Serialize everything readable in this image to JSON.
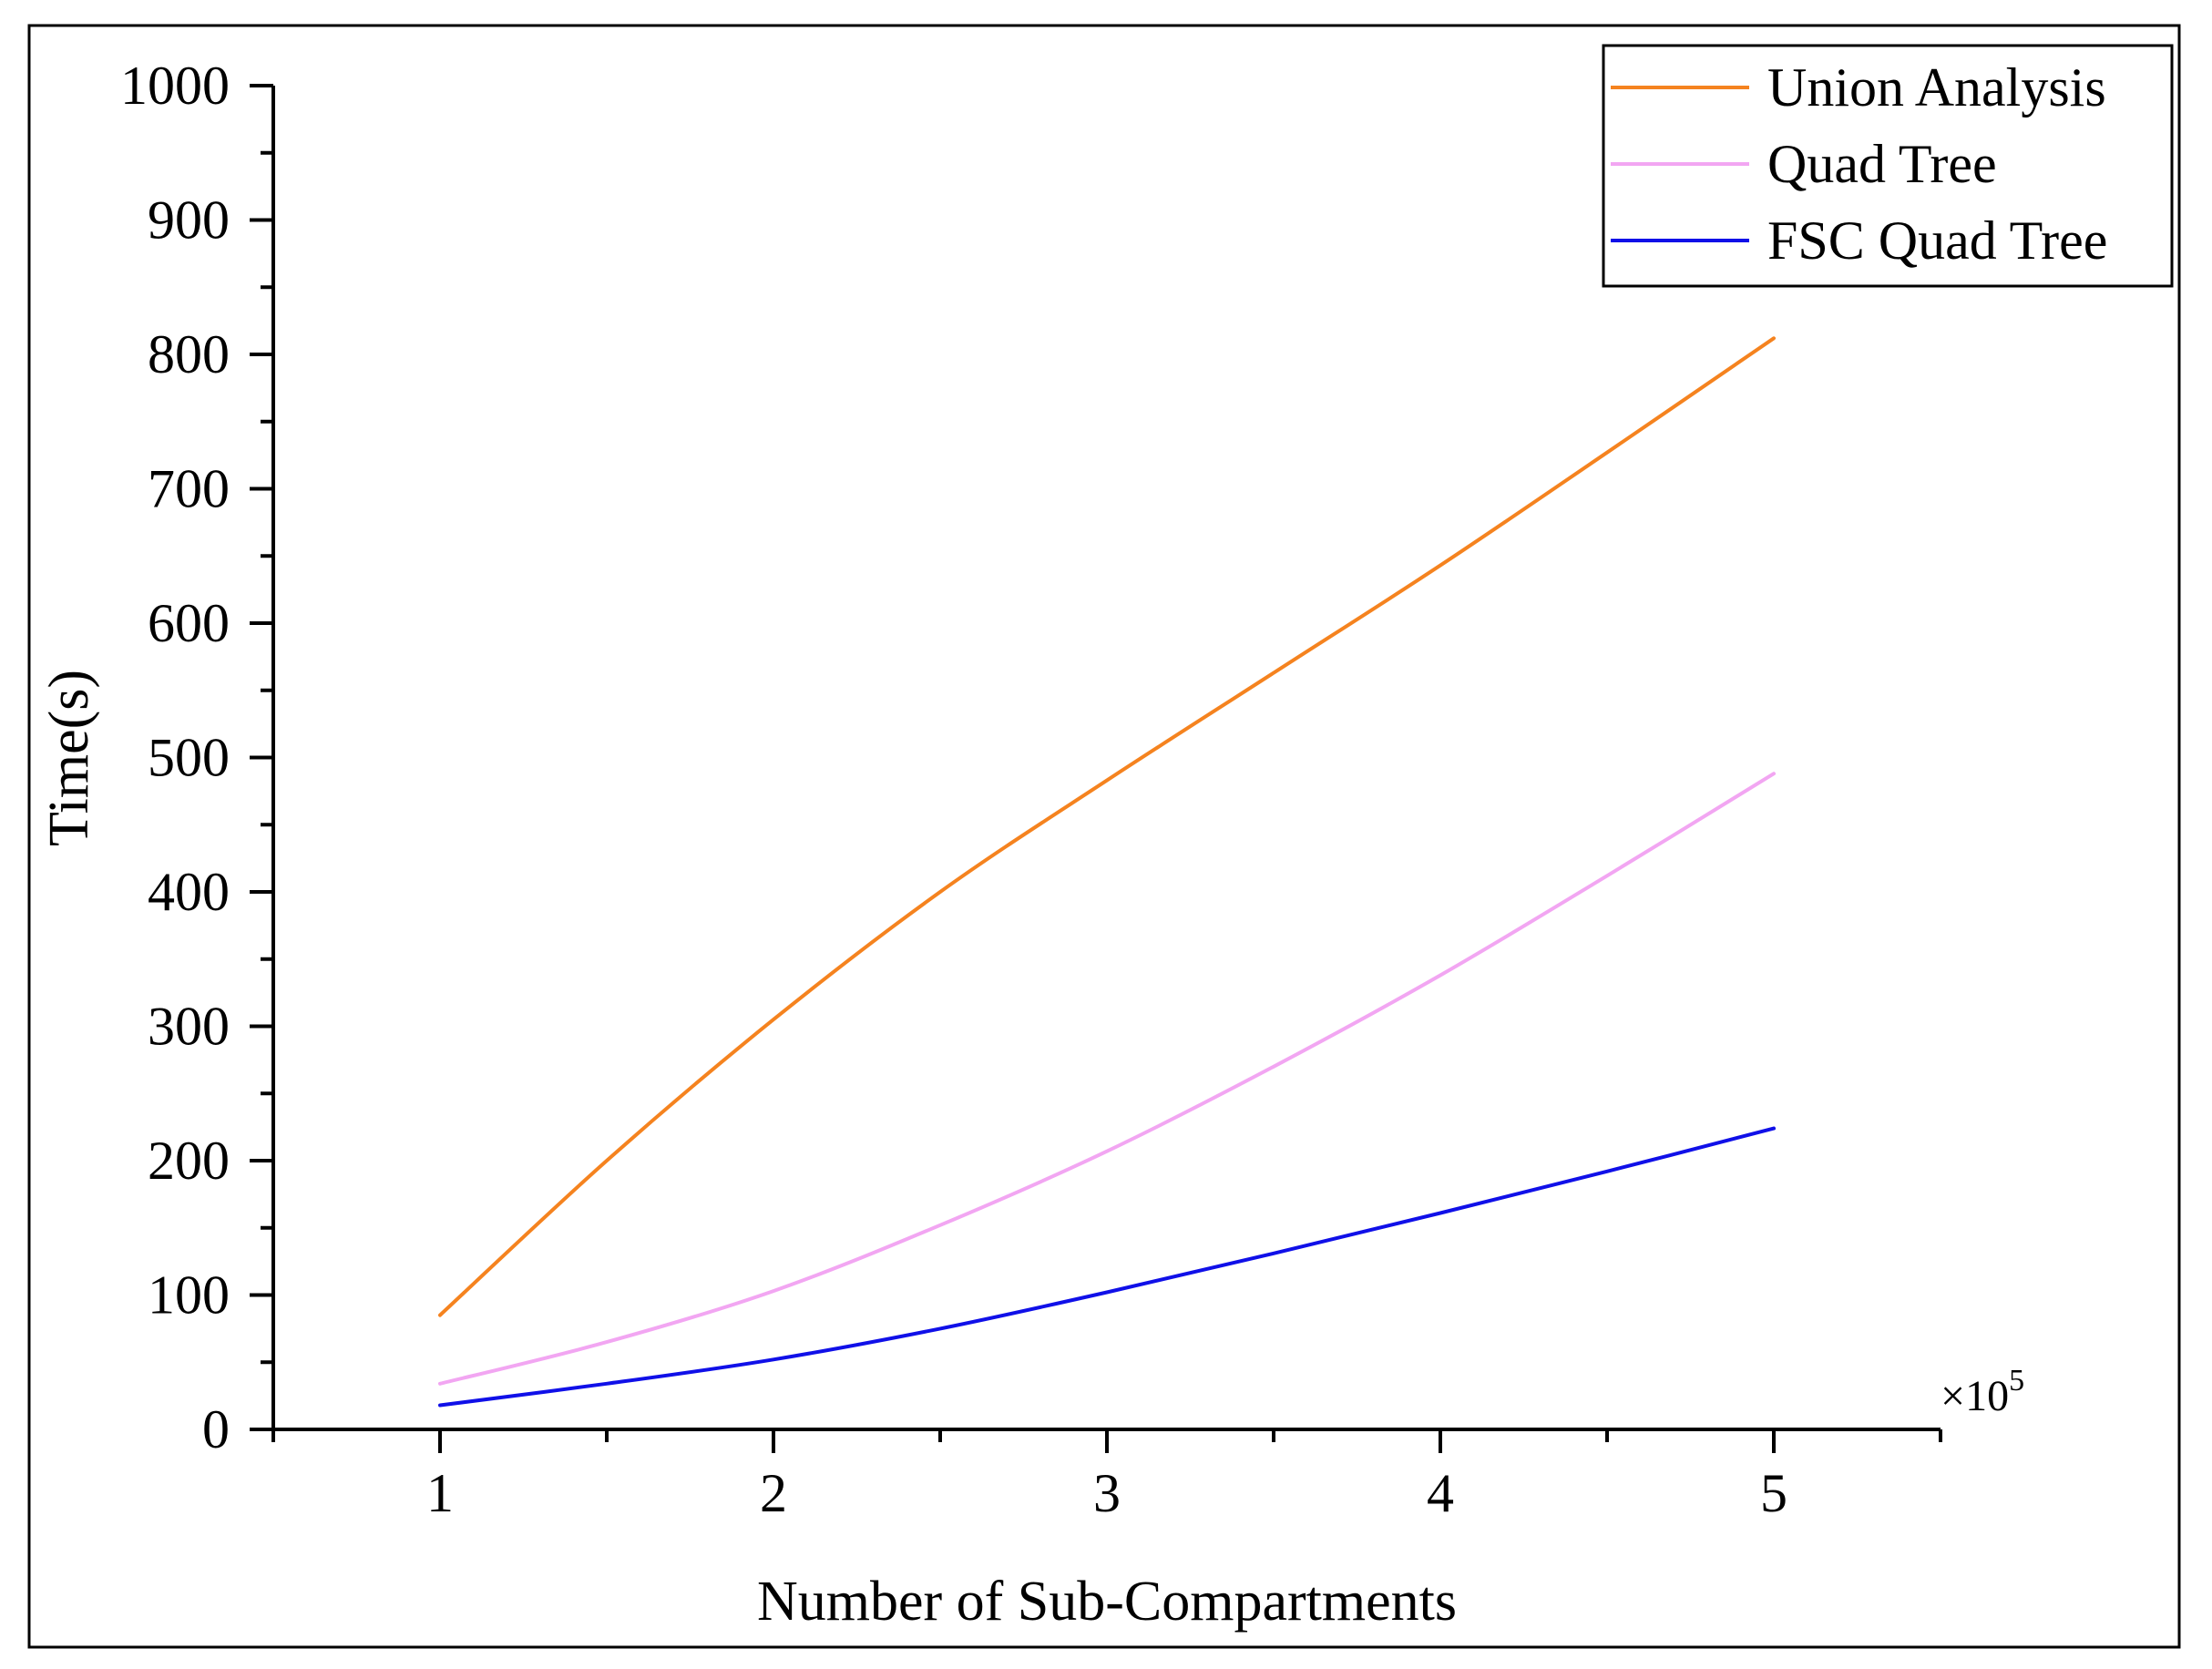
{
  "chart_data": {
    "type": "line",
    "xlabel": "Number of Sub-Compartments",
    "ylabel": "Time(s)",
    "x_multiplier": "×10",
    "x_multiplier_exponent": "5",
    "xlim": [
      0.5,
      5.5
    ],
    "ylim": [
      0,
      1000
    ],
    "x_ticks": [
      1,
      2,
      3,
      4,
      5
    ],
    "x_tick_labels": [
      "1",
      "2",
      "3",
      "4",
      "5"
    ],
    "y_ticks": [
      0,
      100,
      200,
      300,
      400,
      500,
      600,
      700,
      800,
      900,
      1000
    ],
    "y_tick_labels": [
      "0",
      "100",
      "200",
      "300",
      "400",
      "500",
      "600",
      "700",
      "800",
      "900",
      "1000"
    ],
    "grid": false,
    "legend_position": "top-right",
    "series": [
      {
        "name": "Union Analysis",
        "color": "#f5831f",
        "x": [
          1,
          1.5,
          2,
          2.5,
          3,
          3.5,
          4,
          4.5,
          5
        ],
        "y": [
          85,
          200,
          305,
          400,
          483,
          563,
          643,
          727,
          812
        ]
      },
      {
        "name": "Quad Tree",
        "color": "#f2a6f2",
        "x": [
          1,
          1.5,
          2,
          2.5,
          3,
          3.5,
          4,
          4.5,
          5
        ],
        "y": [
          34,
          65,
          103,
          152,
          207,
          270,
          338,
          412,
          488
        ]
      },
      {
        "name": "FSC Quad Tree",
        "color": "#1010e8",
        "x": [
          1,
          1.5,
          2,
          2.5,
          3,
          3.5,
          4,
          4.5,
          5
        ],
        "y": [
          18,
          34,
          52,
          75,
          102,
          131,
          161,
          192,
          224
        ]
      }
    ]
  }
}
